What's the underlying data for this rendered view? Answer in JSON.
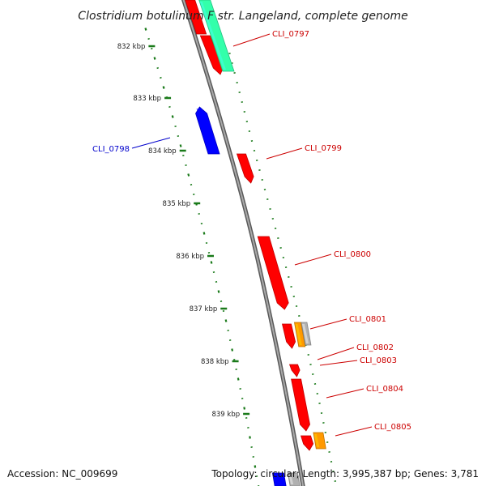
{
  "title": "Clostridium botulinum F str. Langeland, complete genome",
  "footer": {
    "accession": "Accession: NC_009699",
    "topology": "Topology: circular; Length: 3,995,387 bp; Genes: 3,781"
  },
  "colors": {
    "backbone": "#808080",
    "ticks": "#1a7a1a",
    "forward_gene": "#ff0000",
    "reverse_gene": "#0000ff",
    "rrna": "#33ffaa",
    "misc_orange": "#ff9900",
    "misc_gray": "#b0b0b0",
    "forward_label": "#cc0000",
    "reverse_label": "#0000cc"
  },
  "kbp_ticks": [
    "832 kbp",
    "833 kbp",
    "834 kbp",
    "835 kbp",
    "836 kbp",
    "837 kbp",
    "838 kbp",
    "839 kbp"
  ],
  "gene_labels": [
    {
      "id": "CLI_0797",
      "strand": "forward"
    },
    {
      "id": "CLI_0798",
      "strand": "reverse"
    },
    {
      "id": "CLI_0799",
      "strand": "forward"
    },
    {
      "id": "CLI_0800",
      "strand": "forward"
    },
    {
      "id": "CLI_0801",
      "strand": "forward"
    },
    {
      "id": "CLI_0802",
      "strand": "forward"
    },
    {
      "id": "CLI_0803",
      "strand": "forward"
    },
    {
      "id": "CLI_0804",
      "strand": "forward"
    },
    {
      "id": "CLI_0805",
      "strand": "forward"
    }
  ],
  "features": [
    {
      "type": "forward_gene",
      "strand": "forward"
    },
    {
      "type": "forward_gene",
      "strand": "forward"
    },
    {
      "type": "rrna",
      "strand": "forward"
    },
    {
      "type": "reverse_gene",
      "strand": "reverse"
    },
    {
      "type": "forward_gene",
      "strand": "forward"
    },
    {
      "type": "forward_gene",
      "strand": "forward"
    },
    {
      "type": "forward_gene",
      "strand": "forward"
    },
    {
      "type": "misc_orange",
      "strand": "forward"
    },
    {
      "type": "misc_gray",
      "strand": "forward"
    },
    {
      "type": "forward_gene",
      "strand": "forward"
    },
    {
      "type": "forward_gene",
      "strand": "forward"
    },
    {
      "type": "forward_gene",
      "strand": "forward"
    },
    {
      "type": "misc_orange",
      "strand": "forward"
    },
    {
      "type": "reverse_gene",
      "strand": "reverse"
    },
    {
      "type": "misc_gray",
      "strand": "reverse"
    }
  ]
}
